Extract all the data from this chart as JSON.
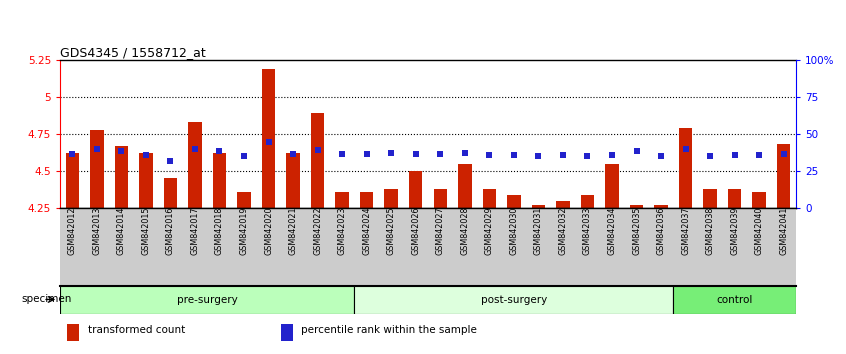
{
  "title": "GDS4345 / 1558712_at",
  "categories": [
    "GSM842012",
    "GSM842013",
    "GSM842014",
    "GSM842015",
    "GSM842016",
    "GSM842017",
    "GSM842018",
    "GSM842019",
    "GSM842020",
    "GSM842021",
    "GSM842022",
    "GSM842023",
    "GSM842024",
    "GSM842025",
    "GSM842026",
    "GSM842027",
    "GSM842028",
    "GSM842029",
    "GSM842030",
    "GSM842031",
    "GSM842032",
    "GSM842033",
    "GSM842034",
    "GSM842035",
    "GSM842036",
    "GSM842037",
    "GSM842038",
    "GSM842039",
    "GSM842040",
    "GSM842041"
  ],
  "bar_values": [
    4.62,
    4.78,
    4.67,
    4.62,
    4.45,
    4.83,
    4.62,
    4.36,
    5.19,
    4.62,
    4.89,
    4.36,
    4.36,
    4.38,
    4.5,
    4.38,
    4.55,
    4.38,
    4.34,
    4.27,
    4.3,
    4.34,
    4.55,
    4.27,
    4.27,
    4.79,
    4.38,
    4.38,
    4.36,
    4.68
  ],
  "blue_values_y": [
    4.617,
    4.648,
    4.632,
    4.609,
    4.568,
    4.648,
    4.632,
    4.602,
    4.697,
    4.617,
    4.645,
    4.617,
    4.617,
    4.62,
    4.617,
    4.617,
    4.62,
    4.609,
    4.607,
    4.602,
    4.607,
    4.602,
    4.609,
    4.632,
    4.602,
    4.648,
    4.602,
    4.609,
    4.609,
    4.617
  ],
  "ymin": 4.25,
  "ymax": 5.25,
  "yticks": [
    4.25,
    4.5,
    4.75,
    5.0,
    5.25
  ],
  "ytick_labels": [
    "4.25",
    "4.5",
    "4.75",
    "5",
    "5.25"
  ],
  "right_ytick_pcts": [
    0,
    25,
    50,
    75,
    100
  ],
  "right_ytick_labels": [
    "0",
    "25",
    "50",
    "75",
    "100%"
  ],
  "bar_color": "#cc2200",
  "blue_color": "#2222cc",
  "bar_bottom": 4.25,
  "groups": [
    {
      "label": "pre-surgery",
      "start": 0,
      "end": 11,
      "color": "#bbffbb"
    },
    {
      "label": "post-surgery",
      "start": 12,
      "end": 24,
      "color": "#ddffdd"
    },
    {
      "label": "control",
      "start": 25,
      "end": 29,
      "color": "#77ee77"
    }
  ],
  "specimen_label": "specimen",
  "legend_items": [
    {
      "label": "transformed count",
      "color": "#cc2200"
    },
    {
      "label": "percentile rank within the sample",
      "color": "#2222cc"
    }
  ],
  "grid_yticks": [
    4.5,
    4.75,
    5.0
  ],
  "xtick_bg": "#cccccc"
}
